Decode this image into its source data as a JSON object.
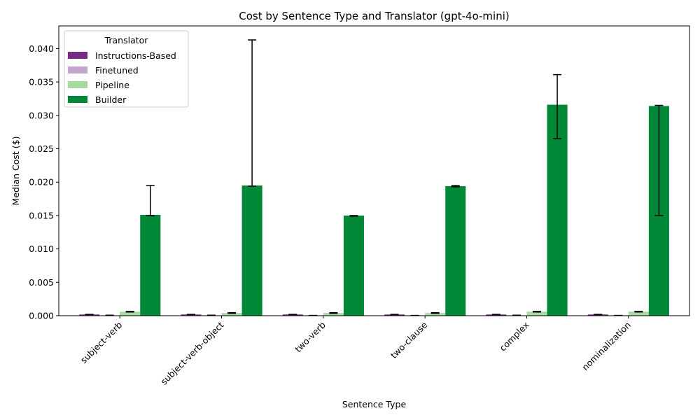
{
  "chart_data": {
    "type": "bar",
    "title": "Cost by Sentence Type and Translator (gpt-4o-mini)",
    "xlabel": "Sentence Type",
    "ylabel": "Median Cost ($)",
    "ylim": [
      0,
      0.0434
    ],
    "yticks": [
      0.0,
      0.005,
      0.01,
      0.015,
      0.02,
      0.025,
      0.03,
      0.035,
      0.04
    ],
    "ytick_labels": [
      "0.000",
      "0.005",
      "0.010",
      "0.015",
      "0.020",
      "0.025",
      "0.030",
      "0.035",
      "0.040"
    ],
    "categories": [
      "subject-verb",
      "subject-verb-object",
      "two-verb",
      "two-clause",
      "complex",
      "nominalization"
    ],
    "legend_title": "Translator",
    "legend_position": "top-left",
    "grid": false,
    "series": [
      {
        "name": "Instructions-Based",
        "color": "#762a83",
        "values": [
          0.00018,
          0.00018,
          0.00018,
          0.00018,
          0.00018,
          0.00018
        ],
        "err_low": [
          0.00016,
          0.00016,
          0.00016,
          0.00016,
          0.00016,
          0.00016
        ],
        "err_high": [
          0.0002,
          0.0002,
          0.0002,
          0.0002,
          0.0002,
          0.0002
        ]
      },
      {
        "name": "Finetuned",
        "color": "#c2a5cf",
        "values": [
          6e-05,
          6e-05,
          3e-05,
          3e-05,
          6e-05,
          3e-05
        ],
        "err_low": [
          5e-05,
          5e-05,
          3e-05,
          3e-05,
          5e-05,
          3e-05
        ],
        "err_high": [
          7e-05,
          7e-05,
          4e-05,
          4e-05,
          7e-05,
          4e-05
        ]
      },
      {
        "name": "Pipeline",
        "color": "#a6dba0",
        "values": [
          0.0006,
          0.0004,
          0.0004,
          0.0004,
          0.0006,
          0.0006
        ],
        "err_low": [
          0.00055,
          0.00035,
          0.00035,
          0.00035,
          0.00055,
          0.00055
        ],
        "err_high": [
          0.00065,
          0.00045,
          0.00045,
          0.00045,
          0.00065,
          0.00065
        ]
      },
      {
        "name": "Builder",
        "color": "#008837",
        "values": [
          0.0151,
          0.0195,
          0.015,
          0.0194,
          0.0316,
          0.0314
        ],
        "err_low": [
          0.015,
          0.0194,
          0.0149,
          0.0193,
          0.0265,
          0.015
        ],
        "err_high": [
          0.0195,
          0.0413,
          0.015,
          0.0195,
          0.0361,
          0.0315
        ]
      }
    ]
  }
}
